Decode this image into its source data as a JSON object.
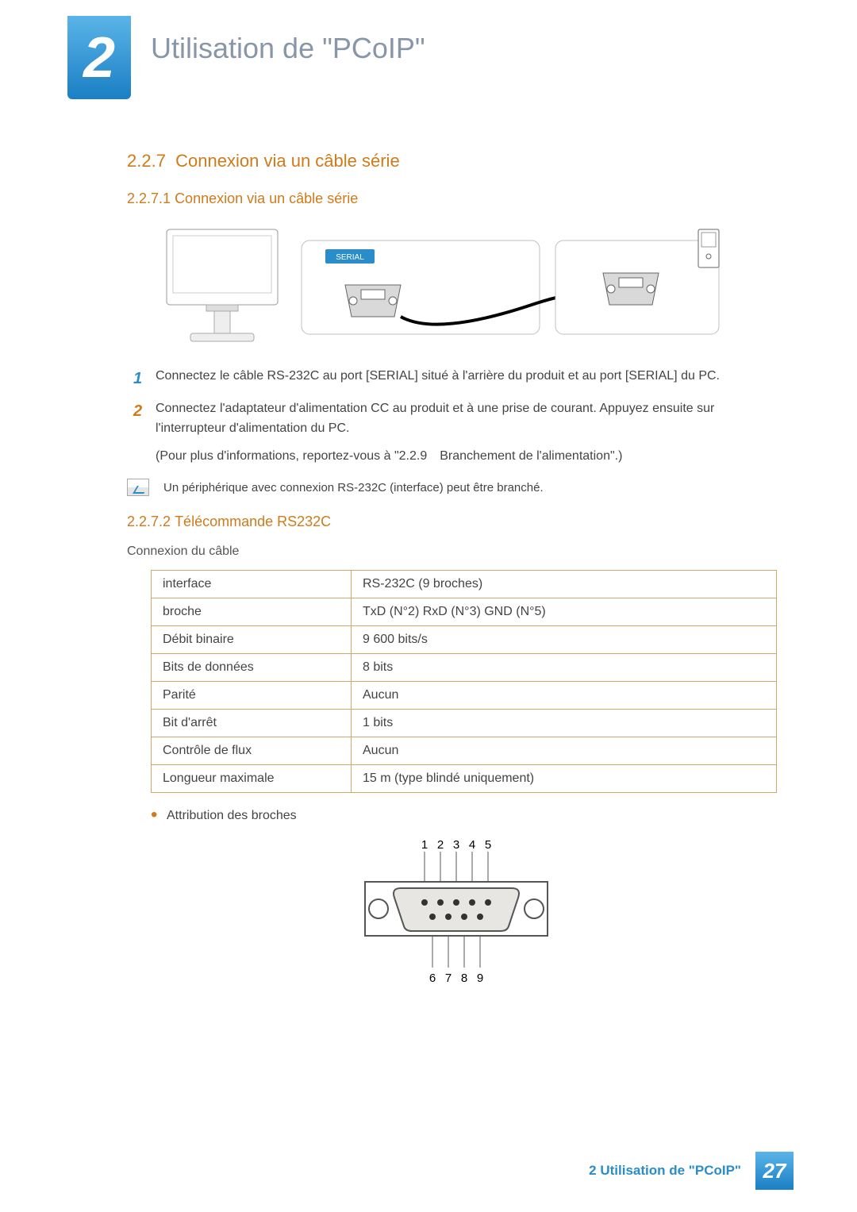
{
  "chapter": {
    "number": "2",
    "title": "Utilisation de \"PCoIP\""
  },
  "section": {
    "number": "2.2.7",
    "title": "Connexion via un câble série",
    "sub1": {
      "number": "2.2.7.1",
      "title": "Connexion via un câble série"
    },
    "sub2": {
      "number": "2.2.7.2",
      "title": "Télécommande RS232C"
    }
  },
  "diagram": {
    "serial_label": "SERIAL",
    "label_bg": "#2a8cc9",
    "label_color": "#ffffff",
    "panel_stroke": "#c0c0c0",
    "connector_fill": "#d9d9d9"
  },
  "steps": [
    "Connectez le câble RS-232C au port [SERIAL] situé à l'arrière du produit et au port [SERIAL] du PC.",
    "Connectez l'adaptateur d'alimentation CC au produit et à une prise de courant. Appuyez ensuite sur l'interrupteur d'alimentation du PC."
  ],
  "step_note": "(Pour plus d'informations, reportez-vous à \"2.2.9 Branchement de l'alimentation\".)",
  "info_note": "Un périphérique avec connexion RS-232C (interface) peut être branché.",
  "cable_heading": "Connexion du câble",
  "spec_table": {
    "border_color": "#cfa96c",
    "rows": [
      [
        "interface",
        "RS-232C (9 broches)"
      ],
      [
        "broche",
        "TxD (N°2) RxD (N°3) GND (N°5)"
      ],
      [
        "Débit binaire",
        "9 600 bits/s"
      ],
      [
        "Bits de données",
        "8 bits"
      ],
      [
        "Parité",
        "Aucun"
      ],
      [
        "Bit d'arrêt",
        "1 bits"
      ],
      [
        "Contrôle de flux",
        "Aucun"
      ],
      [
        "Longueur maximale",
        "15 m (type blindé uniquement)"
      ]
    ]
  },
  "bullet_text": "Attribution des broches",
  "pin_diagram": {
    "top_labels": [
      "1",
      "2",
      "3",
      "4",
      "5"
    ],
    "bottom_labels": [
      "6",
      "7",
      "8",
      "9"
    ],
    "fill": "#e8e6e2",
    "stroke": "#555555"
  },
  "footer": {
    "text": "2 Utilisation de \"PCoIP\"",
    "page": "27"
  },
  "colors": {
    "orange": "#d07a1a",
    "blue": "#2a8cc9",
    "text": "#444444"
  }
}
